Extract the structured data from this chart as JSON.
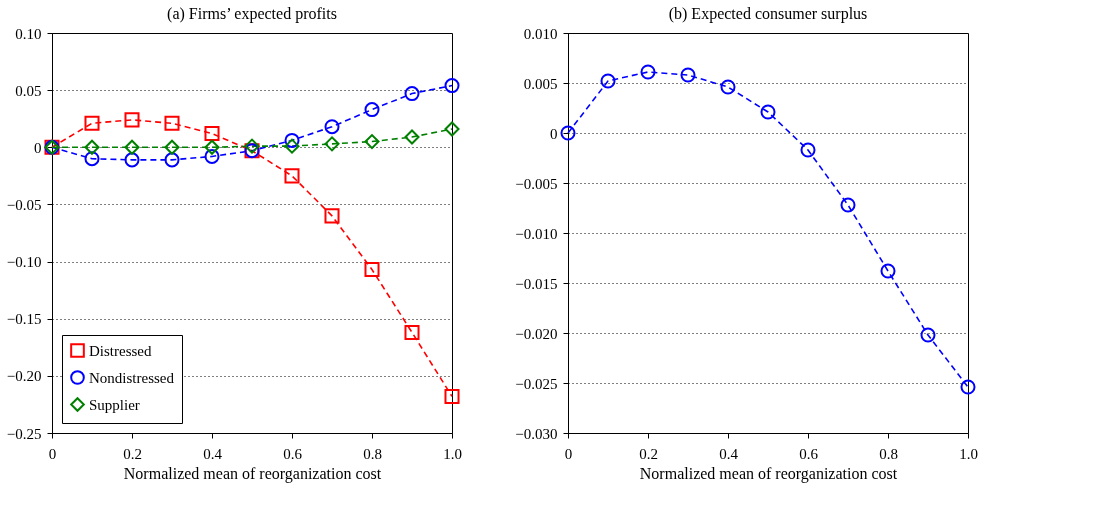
{
  "chart_data": [
    {
      "type": "line",
      "title": "(a) Firms’ expected profits",
      "xlabel": "Normalized mean of reorganization cost",
      "x": [
        0,
        0.1,
        0.2,
        0.3,
        0.4,
        0.5,
        0.6,
        0.7,
        0.8,
        0.9,
        1.0
      ],
      "series": [
        {
          "name": "Distressed",
          "color": "#ff0000",
          "marker": "square",
          "values": [
            0,
            0.021,
            0.024,
            0.021,
            0.012,
            -0.003,
            -0.025,
            -0.06,
            -0.107,
            -0.162,
            -0.218
          ]
        },
        {
          "name": "Nondistressed",
          "color": "#0000ff",
          "marker": "circle",
          "values": [
            0,
            -0.01,
            -0.011,
            -0.011,
            -0.008,
            -0.003,
            0.006,
            0.018,
            0.033,
            0.047,
            0.054
          ]
        },
        {
          "name": "Supplier",
          "color": "#008000",
          "marker": "diamond",
          "values": [
            0,
            0,
            0,
            0,
            0,
            0.001,
            0.001,
            0.003,
            0.005,
            0.009,
            0.016
          ]
        }
      ],
      "xlim": [
        0,
        1.0
      ],
      "xticks": [
        0,
        {
          "value": 0.2,
          "label": "0.2"
        },
        {
          "value": 0.4,
          "label": "0.4"
        },
        {
          "value": 0.6,
          "label": "0.6"
        },
        {
          "value": 0.8,
          "label": "0.8"
        },
        {
          "value": 1.0,
          "label": "1.0"
        }
      ],
      "ylim": [
        -0.25,
        0.1
      ],
      "yticks": [
        {
          "value": -0.25,
          "label": "−0.25"
        },
        {
          "value": -0.2,
          "label": "−0.20"
        },
        {
          "value": -0.15,
          "label": "−0.15"
        },
        {
          "value": -0.1,
          "label": "−0.10"
        },
        {
          "value": -0.05,
          "label": "−0.05"
        },
        0,
        {
          "value": 0.05,
          "label": "0.05"
        },
        {
          "value": 0.1,
          "label": "0.10"
        }
      ],
      "grid": "y",
      "legend": "bottom left",
      "line_style": "dashed"
    },
    {
      "type": "line",
      "title": "(b) Expected consumer surplus",
      "xlabel": "Normalized mean of reorganization cost",
      "x": [
        0,
        0.1,
        0.2,
        0.3,
        0.4,
        0.5,
        0.6,
        0.7,
        0.8,
        0.9,
        1.0
      ],
      "series": [
        {
          "color": "#0000ff",
          "marker": "circle",
          "values": [
            0,
            0.0052,
            0.0061,
            0.0058,
            0.0046,
            0.0021,
            -0.0017,
            -0.0072,
            -0.0138,
            -0.0202,
            -0.0254
          ]
        }
      ],
      "xlim": [
        0,
        1.0
      ],
      "xticks": [
        0,
        {
          "value": 0.2,
          "label": "0.2"
        },
        {
          "value": 0.4,
          "label": "0.4"
        },
        {
          "value": 0.6,
          "label": "0.6"
        },
        {
          "value": 0.8,
          "label": "0.8"
        },
        {
          "value": 1.0,
          "label": "1.0"
        }
      ],
      "ylim": [
        -0.03,
        0.01
      ],
      "yticks": [
        {
          "value": -0.03,
          "label": "−0.030"
        },
        {
          "value": -0.025,
          "label": "−0.025"
        },
        {
          "value": -0.02,
          "label": "−0.020"
        },
        {
          "value": -0.015,
          "label": "−0.015"
        },
        {
          "value": -0.01,
          "label": "−0.010"
        },
        {
          "value": -0.005,
          "label": "−0.005"
        },
        0,
        {
          "value": 0.005,
          "label": "0.005"
        },
        {
          "value": 0.01,
          "label": "0.010"
        }
      ],
      "grid": "y",
      "line_style": "dashed"
    }
  ]
}
